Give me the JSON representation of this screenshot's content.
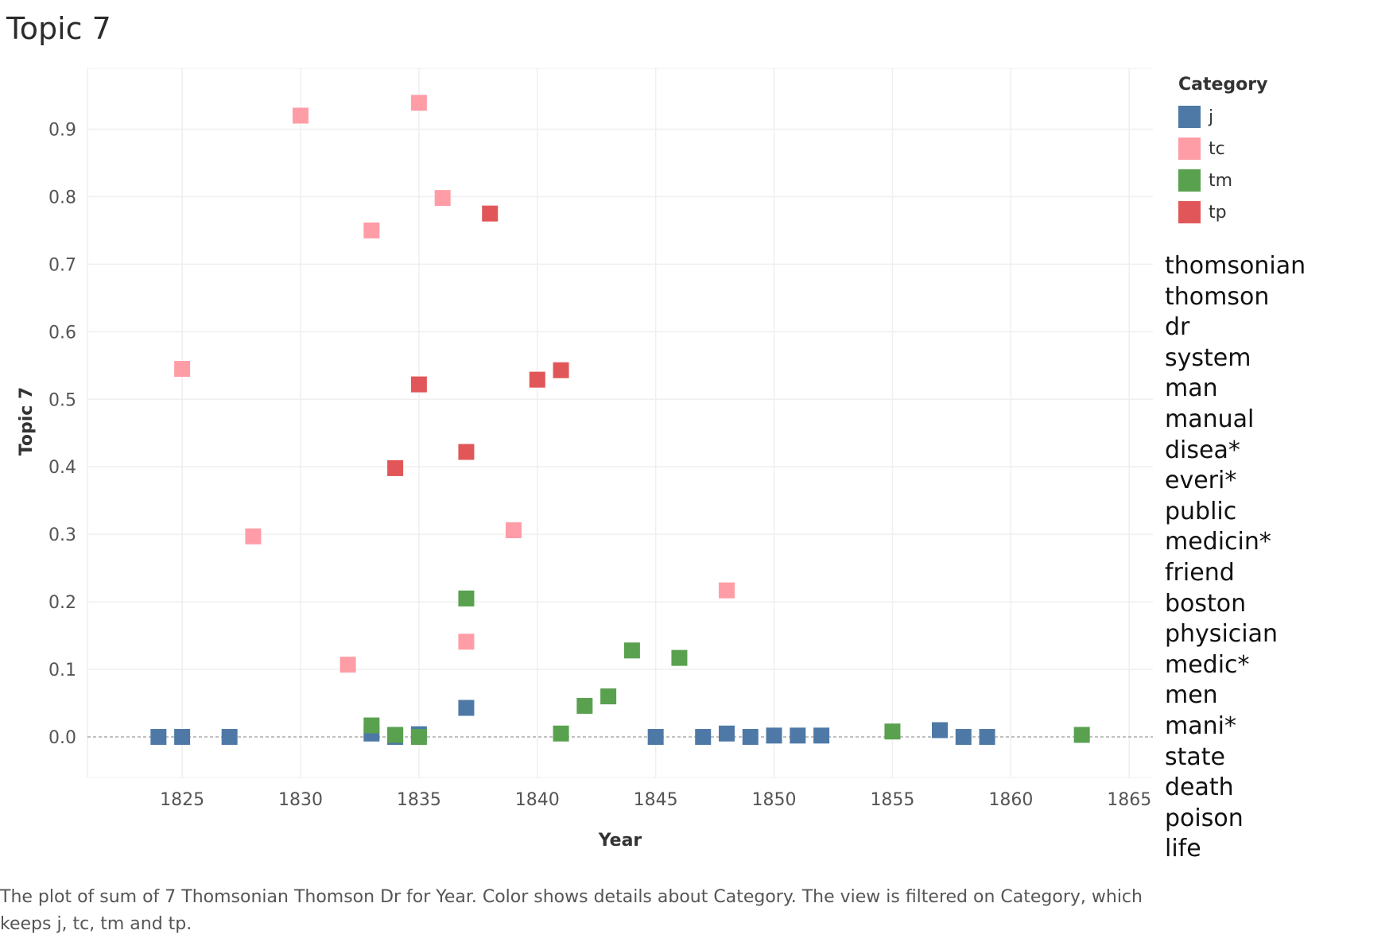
{
  "chart_data": {
    "type": "scatter",
    "title": "Topic 7",
    "xlabel": "Year",
    "ylabel": "Topic 7",
    "xlim": [
      1821,
      1866
    ],
    "ylim": [
      -0.06,
      0.99
    ],
    "xticks": [
      1825,
      1830,
      1835,
      1840,
      1845,
      1850,
      1855,
      1860,
      1865
    ],
    "yticks": [
      0.0,
      0.1,
      0.2,
      0.3,
      0.4,
      0.5,
      0.6,
      0.7,
      0.8,
      0.9
    ],
    "ytick_labels": [
      "0.0",
      "0.1",
      "0.2",
      "0.3",
      "0.4",
      "0.5",
      "0.6",
      "0.7",
      "0.8",
      "0.9"
    ],
    "grid": true,
    "zero_line": "dashed",
    "legend_title": "Category",
    "legend_position": "top-right",
    "series": [
      {
        "name": "j",
        "color": "#4e79a7",
        "points": [
          {
            "x": 1824,
            "y": 0.0
          },
          {
            "x": 1825,
            "y": 0.0
          },
          {
            "x": 1827,
            "y": 0.0
          },
          {
            "x": 1833,
            "y": 0.005
          },
          {
            "x": 1834,
            "y": 0.0
          },
          {
            "x": 1835,
            "y": 0.004
          },
          {
            "x": 1837,
            "y": 0.043
          },
          {
            "x": 1845,
            "y": 0.0
          },
          {
            "x": 1847,
            "y": 0.0
          },
          {
            "x": 1848,
            "y": 0.005
          },
          {
            "x": 1849,
            "y": 0.0
          },
          {
            "x": 1850,
            "y": 0.002
          },
          {
            "x": 1851,
            "y": 0.002
          },
          {
            "x": 1852,
            "y": 0.002
          },
          {
            "x": 1857,
            "y": 0.01
          },
          {
            "x": 1858,
            "y": 0.0
          },
          {
            "x": 1859,
            "y": 0.0
          }
        ]
      },
      {
        "name": "tc",
        "color": "#ff9da7",
        "points": [
          {
            "x": 1825,
            "y": 0.545
          },
          {
            "x": 1828,
            "y": 0.297
          },
          {
            "x": 1830,
            "y": 0.92
          },
          {
            "x": 1832,
            "y": 0.107
          },
          {
            "x": 1833,
            "y": 0.75
          },
          {
            "x": 1835,
            "y": 0.939
          },
          {
            "x": 1836,
            "y": 0.798
          },
          {
            "x": 1837,
            "y": 0.141
          },
          {
            "x": 1839,
            "y": 0.306
          },
          {
            "x": 1848,
            "y": 0.217
          }
        ]
      },
      {
        "name": "tm",
        "color": "#59a14f",
        "points": [
          {
            "x": 1833,
            "y": 0.017
          },
          {
            "x": 1834,
            "y": 0.003
          },
          {
            "x": 1835,
            "y": 0.0
          },
          {
            "x": 1837,
            "y": 0.205
          },
          {
            "x": 1841,
            "y": 0.005
          },
          {
            "x": 1842,
            "y": 0.046
          },
          {
            "x": 1843,
            "y": 0.06
          },
          {
            "x": 1844,
            "y": 0.128
          },
          {
            "x": 1846,
            "y": 0.117
          },
          {
            "x": 1855,
            "y": 0.008
          },
          {
            "x": 1863,
            "y": 0.003
          }
        ]
      },
      {
        "name": "tp",
        "color": "#e15759",
        "points": [
          {
            "x": 1834,
            "y": 0.398
          },
          {
            "x": 1835,
            "y": 0.522
          },
          {
            "x": 1837,
            "y": 0.422
          },
          {
            "x": 1838,
            "y": 0.775
          },
          {
            "x": 1840,
            "y": 0.529
          },
          {
            "x": 1841,
            "y": 0.543
          }
        ]
      }
    ]
  },
  "topic_words": [
    "thomsonian",
    "thomson",
    "dr",
    "system",
    "man",
    "manual",
    "disea*",
    "everi*",
    "public",
    "medicin*",
    "friend",
    "boston",
    "physician",
    "medic*",
    "men",
    "mani*",
    "state",
    "death",
    "poison",
    "life"
  ],
  "caption": "The plot of sum of 7 Thomsonian Thomson Dr for Year.  Color shows details about Category. The view is filtered on Category, which keeps j, tc, tm and tp."
}
